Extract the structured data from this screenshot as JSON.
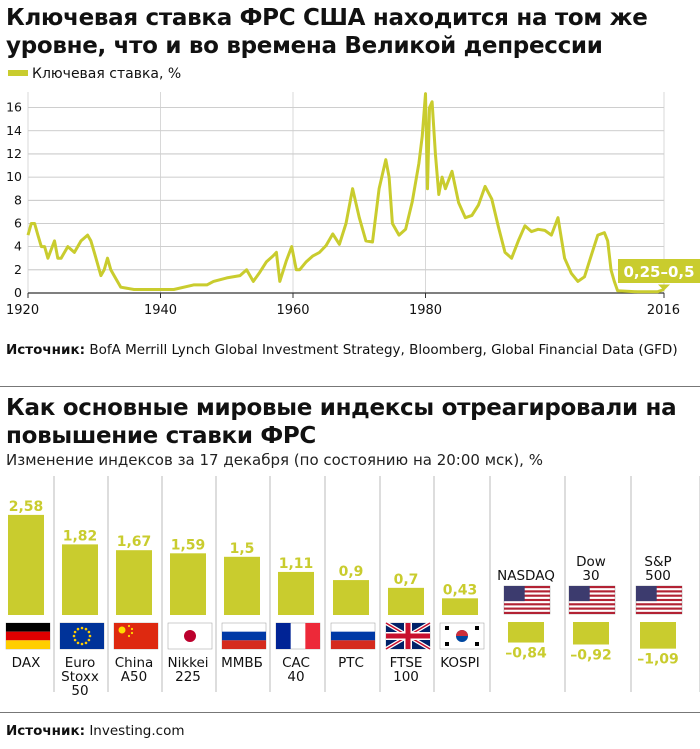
{
  "chart_data": [
    {
      "type": "line",
      "title": "Ключевая ставка ФРС США находится на том же уровне, что и во времена Великой депрессии",
      "legend": "Ключевая ставка, %",
      "legend_position": "top-left",
      "color": "#c9cc2e",
      "grid": true,
      "ylim": [
        0,
        17
      ],
      "yticks": [
        "0",
        "2",
        "4",
        "6",
        "8",
        "10",
        "12",
        "14",
        "16"
      ],
      "xlim": [
        1920,
        2016
      ],
      "xticks": [
        "1920",
        "1940",
        "1960",
        "1980",
        "2016"
      ],
      "annotation": "0,25–0,5",
      "x": [
        1920,
        1920.5,
        1921,
        1921.5,
        1922,
        1922.5,
        1923,
        1924,
        1924.5,
        1925,
        1926,
        1927,
        1927.5,
        1928,
        1929,
        1929.5,
        1930,
        1930.5,
        1931,
        1931.5,
        1932,
        1932.5,
        1933,
        1934,
        1936,
        1938,
        1942,
        1945,
        1947,
        1948,
        1950,
        1952,
        1953,
        1954,
        1955,
        1956,
        1957,
        1957.5,
        1958,
        1959,
        1959.8,
        1960.5,
        1961,
        1962,
        1963,
        1964,
        1965,
        1966,
        1967,
        1968,
        1969,
        1970,
        1971,
        1972,
        1973,
        1974,
        1974.5,
        1975,
        1976,
        1977,
        1978,
        1979,
        1979.5,
        1980,
        1980.3,
        1980.6,
        1981,
        1981.5,
        1982,
        1982.5,
        1983,
        1984,
        1985,
        1986,
        1987,
        1988,
        1989,
        1990,
        1991,
        1992,
        1993,
        1994,
        1995,
        1996,
        1997,
        1998,
        1999,
        2000,
        2001,
        2002,
        2003,
        2004,
        2005,
        2006,
        2007,
        2007.5,
        2008,
        2008.5,
        2009,
        2012,
        2015,
        2016
      ],
      "y": [
        5.0,
        6.0,
        6.0,
        5.0,
        4.0,
        4.0,
        3.0,
        4.5,
        3.0,
        3.0,
        4.0,
        3.5,
        4.0,
        4.5,
        5.0,
        4.5,
        3.5,
        2.5,
        1.5,
        2.0,
        3.0,
        2.0,
        1.5,
        0.5,
        0.3,
        0.3,
        0.3,
        0.7,
        0.7,
        1.0,
        1.3,
        1.5,
        2.0,
        1.0,
        1.8,
        2.7,
        3.2,
        3.5,
        1.0,
        2.8,
        4.0,
        2.0,
        2.0,
        2.7,
        3.2,
        3.5,
        4.1,
        5.1,
        4.2,
        6.0,
        9.0,
        6.5,
        4.5,
        4.4,
        9.0,
        11.5,
        10.0,
        6.0,
        5.0,
        5.5,
        7.9,
        11.2,
        13.5,
        17.2,
        9.0,
        16.0,
        16.5,
        12.0,
        8.5,
        10.0,
        9.0,
        10.5,
        7.8,
        6.5,
        6.7,
        7.6,
        9.2,
        8.1,
        5.7,
        3.5,
        3.0,
        4.5,
        5.8,
        5.3,
        5.5,
        5.4,
        5.0,
        6.5,
        3.0,
        1.7,
        1.0,
        1.4,
        3.2,
        5.0,
        5.2,
        4.5,
        2.0,
        1.0,
        0.2,
        0.1,
        0.1,
        0.3
      ],
      "source_label": "Источник:",
      "source_text": "BofA Merrill Lynch Global Investment Strategy, Bloomberg, Global Financial Data (GFD)"
    },
    {
      "type": "bar",
      "title": "Как основные мировые индексы отреагировали на повышение ставки ФРС",
      "subtitle": "Изменение индексов за 17 декабря (по состоянию на 20:00 мск), %",
      "color": "#c9cc2e",
      "categories": [
        "DAX",
        "Euro\nStoxx\n50",
        "China\nA50",
        "Nikkei\n225",
        "ММВБ",
        "CAC\n40",
        "РТС",
        "FTSE\n100",
        "KOSPI",
        "NASDAQ",
        "Dow\n30",
        "S&P\n500"
      ],
      "values": [
        2.58,
        1.82,
        1.67,
        1.59,
        1.5,
        1.11,
        0.9,
        0.7,
        0.43,
        -0.84,
        -0.92,
        -1.09
      ],
      "value_labels": [
        "2,58",
        "1,82",
        "1,67",
        "1,59",
        "1,5",
        "1,11",
        "0,9",
        "0,7",
        "0,43",
        "–0,84",
        "–0,92",
        "–1,09"
      ],
      "flags": [
        "germany-flag",
        "eu-flag",
        "china-flag",
        "japan-flag",
        "russia-flag",
        "france-flag",
        "russia-flag",
        "uk-flag",
        "korea-flag",
        "usa-flag",
        "usa-flag",
        "usa-flag"
      ],
      "source_label": "Источник:",
      "source_text": "Investing.com"
    }
  ]
}
